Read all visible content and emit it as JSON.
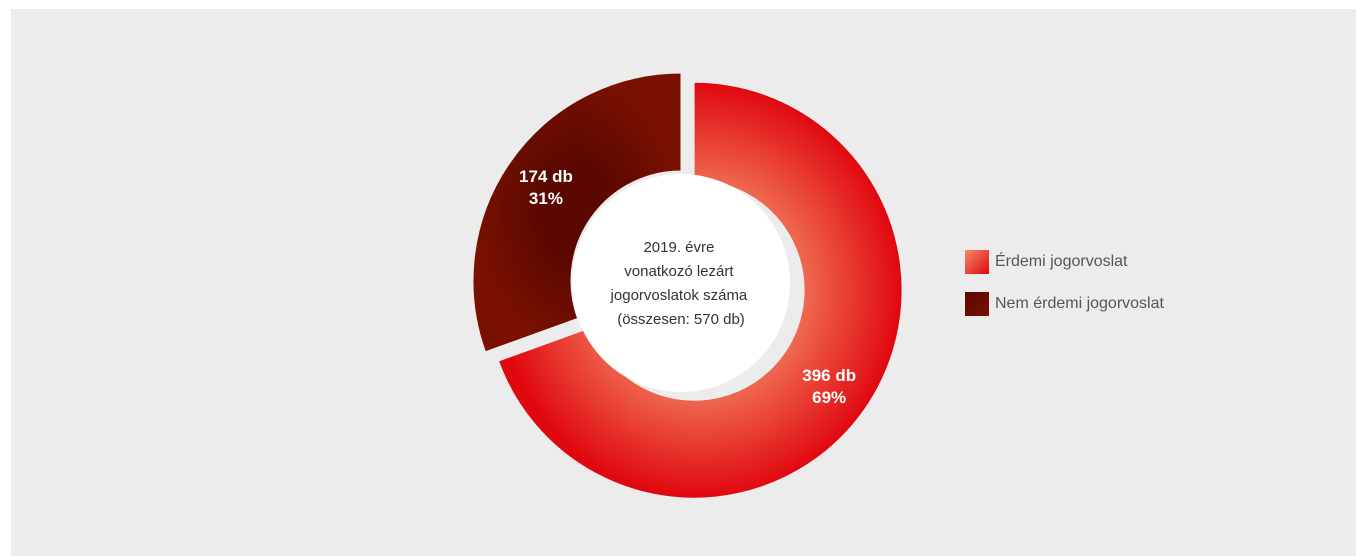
{
  "chart_data": {
    "type": "pie",
    "title": "2019. évre vonatkozó lezárt jogorvoslatok száma (összesen: 570 db)",
    "center_lines": [
      "2019. évre",
      "vonatkozó lezárt",
      "jogorvoslatok száma",
      "(összesen: 570 db)"
    ],
    "slices": [
      {
        "name": "Érdemi jogorvoslat",
        "value": 396,
        "percent": 69,
        "count_label": "396 db",
        "percent_label": "69%",
        "color": "#e8141b",
        "exploded": true
      },
      {
        "name": "Nem érdemi jogorvoslat",
        "value": 174,
        "percent": 31,
        "count_label": "174 db",
        "percent_label": "31%",
        "color": "#6e0e00",
        "exploded": false
      }
    ],
    "legend_position": "right"
  },
  "colors": {
    "background": "#ececec",
    "erdemi_light": "#f48a66",
    "erdemi_dark": "#e0070f",
    "nem_erdemi_light": "#5a0800",
    "nem_erdemi_dark": "#7a1000"
  }
}
